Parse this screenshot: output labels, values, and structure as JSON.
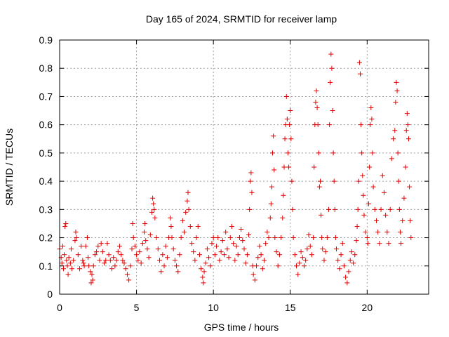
{
  "chart_data": {
    "type": "scatter",
    "title": "Day 165 of 2024, SRMTID for receiver lamp",
    "xlabel": "GPS time / hours",
    "ylabel": "SRMTID / TECUs",
    "xlim": [
      0,
      24
    ],
    "ylim": [
      0,
      0.9
    ],
    "xticks": [
      0,
      5,
      10,
      15,
      20
    ],
    "yticks": [
      0,
      0.1,
      0.2,
      0.3,
      0.4,
      0.5,
      0.6,
      0.7,
      0.8,
      0.9
    ],
    "grid": true,
    "marker": "+",
    "series": [
      {
        "name": "SRMTID",
        "color": "#e00000",
        "points": [
          [
            0.0,
            0.16
          ],
          [
            0.1,
            0.13
          ],
          [
            0.15,
            0.11
          ],
          [
            0.2,
            0.17
          ],
          [
            0.25,
            0.09
          ],
          [
            0.3,
            0.14
          ],
          [
            0.35,
            0.24
          ],
          [
            0.4,
            0.25
          ],
          [
            0.45,
            0.12
          ],
          [
            0.5,
            0.1
          ],
          [
            0.55,
            0.07
          ],
          [
            0.6,
            0.13
          ],
          [
            0.7,
            0.11
          ],
          [
            0.75,
            0.16
          ],
          [
            0.8,
            0.09
          ],
          [
            0.9,
            0.12
          ],
          [
            1.0,
            0.19
          ],
          [
            1.05,
            0.22
          ],
          [
            1.1,
            0.2
          ],
          [
            1.2,
            0.14
          ],
          [
            1.3,
            0.09
          ],
          [
            1.4,
            0.17
          ],
          [
            1.5,
            0.12
          ],
          [
            1.55,
            0.11
          ],
          [
            1.6,
            0.1
          ],
          [
            1.7,
            0.17
          ],
          [
            1.8,
            0.2
          ],
          [
            1.85,
            0.13
          ],
          [
            1.9,
            0.1
          ],
          [
            2.0,
            0.08
          ],
          [
            2.05,
            0.04
          ],
          [
            2.1,
            0.07
          ],
          [
            2.15,
            0.05
          ],
          [
            2.2,
            0.1
          ],
          [
            2.3,
            0.14
          ],
          [
            2.4,
            0.15
          ],
          [
            2.5,
            0.17
          ],
          [
            2.6,
            0.12
          ],
          [
            2.7,
            0.18
          ],
          [
            2.8,
            0.15
          ],
          [
            2.9,
            0.11
          ],
          [
            3.0,
            0.12
          ],
          [
            3.1,
            0.18
          ],
          [
            3.2,
            0.14
          ],
          [
            3.3,
            0.12
          ],
          [
            3.4,
            0.09
          ],
          [
            3.5,
            0.13
          ],
          [
            3.6,
            0.1
          ],
          [
            3.7,
            0.12
          ],
          [
            3.8,
            0.15
          ],
          [
            3.9,
            0.17
          ],
          [
            4.0,
            0.14
          ],
          [
            4.1,
            0.12
          ],
          [
            4.2,
            0.11
          ],
          [
            4.3,
            0.09
          ],
          [
            4.4,
            0.07
          ],
          [
            4.5,
            0.05
          ],
          [
            4.6,
            0.1
          ],
          [
            4.7,
            0.16
          ],
          [
            4.75,
            0.25
          ],
          [
            4.8,
            0.2
          ],
          [
            4.9,
            0.17
          ],
          [
            5.0,
            0.14
          ],
          [
            5.1,
            0.12
          ],
          [
            5.2,
            0.15
          ],
          [
            5.3,
            0.11
          ],
          [
            5.4,
            0.18
          ],
          [
            5.5,
            0.22
          ],
          [
            5.55,
            0.25
          ],
          [
            5.6,
            0.19
          ],
          [
            5.7,
            0.16
          ],
          [
            5.8,
            0.13
          ],
          [
            5.9,
            0.21
          ],
          [
            6.0,
            0.29
          ],
          [
            6.05,
            0.34
          ],
          [
            6.1,
            0.32
          ],
          [
            6.15,
            0.3
          ],
          [
            6.2,
            0.27
          ],
          [
            6.3,
            0.2
          ],
          [
            6.4,
            0.16
          ],
          [
            6.5,
            0.12
          ],
          [
            6.6,
            0.08
          ],
          [
            6.7,
            0.14
          ],
          [
            6.8,
            0.1
          ],
          [
            6.9,
            0.17
          ],
          [
            7.0,
            0.13
          ],
          [
            7.1,
            0.2
          ],
          [
            7.2,
            0.27
          ],
          [
            7.25,
            0.24
          ],
          [
            7.3,
            0.2
          ],
          [
            7.4,
            0.16
          ],
          [
            7.5,
            0.12
          ],
          [
            7.6,
            0.1
          ],
          [
            7.7,
            0.08
          ],
          [
            7.8,
            0.14
          ],
          [
            7.9,
            0.2
          ],
          [
            8.0,
            0.26
          ],
          [
            8.1,
            0.22
          ],
          [
            8.2,
            0.29
          ],
          [
            8.3,
            0.33
          ],
          [
            8.35,
            0.36
          ],
          [
            8.4,
            0.3
          ],
          [
            8.5,
            0.24
          ],
          [
            8.6,
            0.18
          ],
          [
            8.7,
            0.15
          ],
          [
            8.8,
            0.12
          ],
          [
            8.9,
            0.2
          ],
          [
            9.0,
            0.24
          ],
          [
            9.1,
            0.14
          ],
          [
            9.2,
            0.09
          ],
          [
            9.3,
            0.06
          ],
          [
            9.35,
            0.04
          ],
          [
            9.4,
            0.08
          ],
          [
            9.5,
            0.11
          ],
          [
            9.6,
            0.16
          ],
          [
            9.7,
            0.13
          ],
          [
            9.8,
            0.1
          ],
          [
            9.9,
            0.18
          ],
          [
            10.0,
            0.2
          ],
          [
            10.1,
            0.14
          ],
          [
            10.2,
            0.17
          ],
          [
            10.3,
            0.2
          ],
          [
            10.4,
            0.12
          ],
          [
            10.5,
            0.15
          ],
          [
            10.6,
            0.19
          ],
          [
            10.7,
            0.14
          ],
          [
            10.8,
            0.22
          ],
          [
            10.9,
            0.16
          ],
          [
            11.0,
            0.13
          ],
          [
            11.1,
            0.2
          ],
          [
            11.2,
            0.24
          ],
          [
            11.3,
            0.18
          ],
          [
            11.4,
            0.12
          ],
          [
            11.5,
            0.17
          ],
          [
            11.6,
            0.14
          ],
          [
            11.7,
            0.2
          ],
          [
            11.8,
            0.23
          ],
          [
            11.9,
            0.19
          ],
          [
            12.0,
            0.16
          ],
          [
            12.1,
            0.11
          ],
          [
            12.2,
            0.14
          ],
          [
            12.3,
            0.21
          ],
          [
            12.35,
            0.3
          ],
          [
            12.4,
            0.4
          ],
          [
            12.45,
            0.43
          ],
          [
            12.5,
            0.36
          ],
          [
            12.55,
            0.1
          ],
          [
            12.6,
            0.07
          ],
          [
            12.7,
            0.05
          ],
          [
            12.8,
            0.1
          ],
          [
            12.9,
            0.13
          ],
          [
            13.0,
            0.17
          ],
          [
            13.1,
            0.14
          ],
          [
            13.2,
            0.09
          ],
          [
            13.3,
            0.12
          ],
          [
            13.4,
            0.18
          ],
          [
            13.5,
            0.22
          ],
          [
            13.6,
            0.2
          ],
          [
            13.7,
            0.27
          ],
          [
            13.75,
            0.32
          ],
          [
            13.8,
            0.38
          ],
          [
            13.85,
            0.5
          ],
          [
            13.9,
            0.56
          ],
          [
            13.95,
            0.44
          ],
          [
            14.0,
            0.2
          ],
          [
            14.1,
            0.15
          ],
          [
            14.2,
            0.1
          ],
          [
            14.3,
            0.14
          ],
          [
            14.4,
            0.2
          ],
          [
            14.5,
            0.27
          ],
          [
            14.55,
            0.35
          ],
          [
            14.6,
            0.45
          ],
          [
            14.65,
            0.55
          ],
          [
            14.7,
            0.6
          ],
          [
            14.75,
            0.7
          ],
          [
            14.8,
            0.62
          ],
          [
            14.85,
            0.5
          ],
          [
            14.9,
            0.45
          ],
          [
            14.95,
            0.6
          ],
          [
            15.0,
            0.65
          ],
          [
            15.05,
            0.55
          ],
          [
            15.1,
            0.4
          ],
          [
            15.15,
            0.3
          ],
          [
            15.2,
            0.2
          ],
          [
            15.3,
            0.14
          ],
          [
            15.4,
            0.1
          ],
          [
            15.5,
            0.07
          ],
          [
            15.6,
            0.11
          ],
          [
            15.7,
            0.15
          ],
          [
            15.8,
            0.13
          ],
          [
            15.9,
            0.1
          ],
          [
            16.0,
            0.12
          ],
          [
            16.1,
            0.16
          ],
          [
            16.2,
            0.21
          ],
          [
            16.3,
            0.17
          ],
          [
            16.4,
            0.14
          ],
          [
            16.5,
            0.2
          ],
          [
            16.55,
            0.45
          ],
          [
            16.6,
            0.6
          ],
          [
            16.65,
            0.68
          ],
          [
            16.7,
            0.72
          ],
          [
            16.75,
            0.66
          ],
          [
            16.8,
            0.6
          ],
          [
            16.85,
            0.5
          ],
          [
            16.9,
            0.38
          ],
          [
            16.95,
            0.4
          ],
          [
            17.0,
            0.28
          ],
          [
            17.05,
            0.2
          ],
          [
            17.1,
            0.16
          ],
          [
            17.2,
            0.12
          ],
          [
            17.3,
            0.15
          ],
          [
            17.4,
            0.2
          ],
          [
            17.5,
            0.3
          ],
          [
            17.55,
            0.6
          ],
          [
            17.6,
            0.75
          ],
          [
            17.65,
            0.85
          ],
          [
            17.7,
            0.8
          ],
          [
            17.75,
            0.65
          ],
          [
            17.8,
            0.5
          ],
          [
            17.85,
            0.4
          ],
          [
            17.9,
            0.3
          ],
          [
            17.95,
            0.2
          ],
          [
            18.0,
            0.16
          ],
          [
            18.1,
            0.12
          ],
          [
            18.2,
            0.09
          ],
          [
            18.3,
            0.14
          ],
          [
            18.4,
            0.18
          ],
          [
            18.5,
            0.1
          ],
          [
            18.6,
            0.06
          ],
          [
            18.7,
            0.04
          ],
          [
            18.8,
            0.08
          ],
          [
            18.9,
            0.12
          ],
          [
            19.0,
            0.15
          ],
          [
            19.1,
            0.11
          ],
          [
            19.2,
            0.14
          ],
          [
            19.3,
            0.19
          ],
          [
            19.35,
            0.24
          ],
          [
            19.4,
            0.3
          ],
          [
            19.45,
            0.4
          ],
          [
            19.5,
            0.82
          ],
          [
            19.55,
            0.78
          ],
          [
            19.6,
            0.6
          ],
          [
            19.65,
            0.5
          ],
          [
            19.7,
            0.42
          ],
          [
            19.75,
            0.35
          ],
          [
            19.8,
            0.28
          ],
          [
            19.9,
            0.22
          ],
          [
            20.0,
            0.2
          ],
          [
            20.05,
            0.18
          ],
          [
            20.1,
            0.32
          ],
          [
            20.15,
            0.45
          ],
          [
            20.2,
            0.6
          ],
          [
            20.25,
            0.66
          ],
          [
            20.3,
            0.62
          ],
          [
            20.35,
            0.5
          ],
          [
            20.4,
            0.38
          ],
          [
            20.5,
            0.3
          ],
          [
            20.6,
            0.26
          ],
          [
            20.7,
            0.22
          ],
          [
            20.8,
            0.18
          ],
          [
            20.9,
            0.3
          ],
          [
            21.0,
            0.42
          ],
          [
            21.1,
            0.36
          ],
          [
            21.2,
            0.28
          ],
          [
            21.3,
            0.22
          ],
          [
            21.4,
            0.18
          ],
          [
            21.5,
            0.3
          ],
          [
            21.6,
            0.48
          ],
          [
            21.7,
            0.55
          ],
          [
            21.8,
            0.58
          ],
          [
            21.85,
            0.68
          ],
          [
            21.9,
            0.75
          ],
          [
            21.95,
            0.72
          ],
          [
            22.0,
            0.5
          ],
          [
            22.05,
            0.4
          ],
          [
            22.1,
            0.3
          ],
          [
            22.15,
            0.22
          ],
          [
            22.2,
            0.18
          ],
          [
            22.3,
            0.26
          ],
          [
            22.4,
            0.34
          ],
          [
            22.5,
            0.45
          ],
          [
            22.55,
            0.58
          ],
          [
            22.6,
            0.64
          ],
          [
            22.65,
            0.6
          ],
          [
            22.7,
            0.55
          ],
          [
            22.75,
            0.38
          ],
          [
            22.8,
            0.26
          ],
          [
            22.85,
            0.2
          ]
        ]
      }
    ]
  }
}
